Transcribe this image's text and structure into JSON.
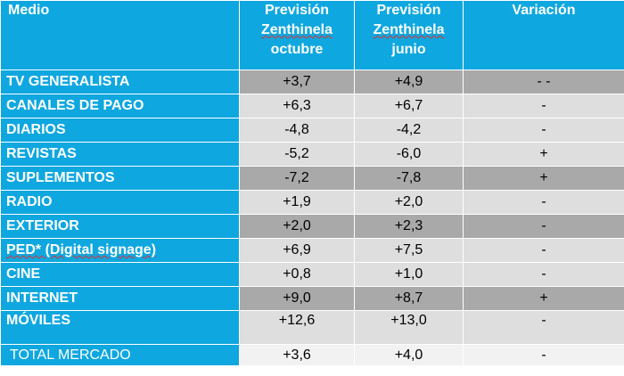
{
  "header": {
    "medio": "Medio",
    "col1": [
      "Previsión",
      "Zenthinela",
      "octubre"
    ],
    "col2": [
      "Previsión",
      "Zenthinela",
      "junio"
    ],
    "variacion": "Variación"
  },
  "rows": [
    {
      "medio": "TV GENERALISTA",
      "octubre": "+3,7",
      "junio": "+4,9",
      "variacion": "- -"
    },
    {
      "medio": "CANALES DE PAGO",
      "octubre": "+6,3",
      "junio": "+6,7",
      "variacion": "-"
    },
    {
      "medio": "DIARIOS",
      "octubre": "-4,8",
      "junio": "-4,2",
      "variacion": "-"
    },
    {
      "medio": "REVISTAS",
      "octubre": "-5,2",
      "junio": "-6,0",
      "variacion": "+"
    },
    {
      "medio": "SUPLEMENTOS",
      "octubre": "-7,2",
      "junio": "-7,8",
      "variacion": "+"
    },
    {
      "medio": "RADIO",
      "octubre": "+1,9",
      "junio": "+2,0",
      "variacion": "-"
    },
    {
      "medio": "EXTERIOR",
      "octubre": "+2,0",
      "junio": "+2,3",
      "variacion": "-"
    },
    {
      "medio": "PED* (Digital signage)",
      "octubre": "+6,9",
      "junio": "+7,5",
      "variacion": "-"
    },
    {
      "medio": "CINE",
      "octubre": "+0,8",
      "junio": "+1,0",
      "variacion": "-"
    },
    {
      "medio": "INTERNET",
      "octubre": "+9,0",
      "junio": "+8,7",
      "variacion": "+"
    },
    {
      "medio": "MÓVILES",
      "octubre": "+12,6",
      "junio": "+13,0",
      "variacion": "-"
    },
    {
      "medio": "TOTAL MERCADO",
      "octubre": "+3,6",
      "junio": "+4,0",
      "variacion": "-"
    }
  ],
  "colors": {
    "header_blue": "#0fa7df",
    "light_gray": "#dedede",
    "dark_gray": "#a9a9a9"
  }
}
